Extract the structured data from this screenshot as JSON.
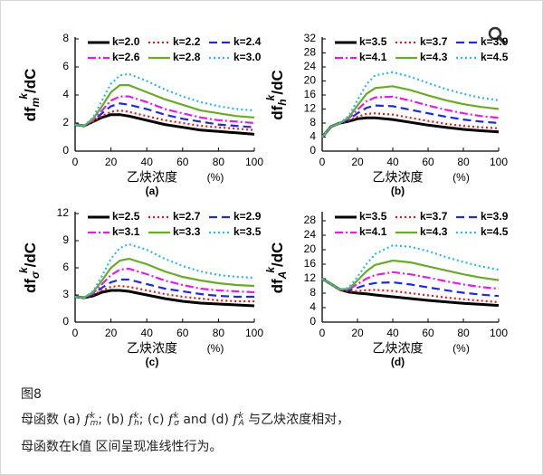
{
  "chart_data": [
    {
      "type": "line",
      "panel": "(a)",
      "xlabel": "乙炔浓度",
      "xunit": "(%)",
      "ylabel": {
        "base": "df",
        "sub": "m",
        "sup": "k",
        "rest": "/dC"
      },
      "x": [
        0,
        5,
        10,
        15,
        20,
        25,
        30,
        40,
        50,
        60,
        70,
        80,
        90,
        100
      ],
      "xlim": [
        0,
        100
      ],
      "xticks": [
        0,
        20,
        40,
        60,
        80,
        100
      ],
      "ylim": [
        0,
        8
      ],
      "yticks": [
        0,
        2,
        4,
        6,
        8
      ],
      "series": [
        {
          "name": "k=2.0",
          "color": "#000000",
          "style": "solid",
          "values": [
            1.9,
            1.8,
            2.1,
            2.4,
            2.6,
            2.6,
            2.5,
            2.2,
            1.9,
            1.7,
            1.5,
            1.4,
            1.3,
            1.2
          ]
        },
        {
          "name": "k=2.2",
          "color": "#e31a1c",
          "style": "dotted",
          "values": [
            1.9,
            1.8,
            2.1,
            2.5,
            2.8,
            2.9,
            2.8,
            2.5,
            2.2,
            2.0,
            1.8,
            1.7,
            1.6,
            1.5
          ]
        },
        {
          "name": "k=2.4",
          "color": "#1f2bd6",
          "style": "dashed",
          "values": [
            1.9,
            1.8,
            2.2,
            2.7,
            3.2,
            3.4,
            3.3,
            3.0,
            2.6,
            2.3,
            2.1,
            1.9,
            1.8,
            1.7
          ]
        },
        {
          "name": "k=2.6",
          "color": "#e020e0",
          "style": "dashdot",
          "values": [
            1.9,
            1.8,
            2.2,
            2.9,
            3.6,
            3.9,
            3.9,
            3.5,
            3.0,
            2.7,
            2.4,
            2.2,
            2.1,
            2.0
          ]
        },
        {
          "name": "k=2.8",
          "color": "#6aaa2a",
          "style": "solid",
          "values": [
            1.9,
            1.8,
            2.3,
            3.2,
            4.2,
            4.7,
            4.7,
            4.2,
            3.7,
            3.3,
            2.9,
            2.7,
            2.5,
            2.4
          ]
        },
        {
          "name": "k=3.0",
          "color": "#33b5e5",
          "style": "dotted",
          "values": [
            1.9,
            1.8,
            2.4,
            3.6,
            4.8,
            5.4,
            5.5,
            5.0,
            4.4,
            3.9,
            3.5,
            3.2,
            3.0,
            2.9
          ]
        }
      ]
    },
    {
      "type": "line",
      "panel": "(b)",
      "xlabel": "乙炔浓度",
      "xunit": "(%)",
      "ylabel": {
        "base": "df",
        "sub": "h",
        "sup": "k",
        "rest": "/dC"
      },
      "x": [
        0,
        5,
        10,
        15,
        20,
        25,
        30,
        40,
        50,
        60,
        70,
        80,
        90,
        100
      ],
      "xlim": [
        0,
        100
      ],
      "xticks": [
        0,
        20,
        40,
        60,
        80,
        100
      ],
      "ylim": [
        0,
        32
      ],
      "yticks": [
        0,
        4,
        8,
        12,
        16,
        20,
        24,
        28,
        32
      ],
      "series": [
        {
          "name": "k=3.5",
          "color": "#000000",
          "style": "solid",
          "values": [
            4,
            7,
            8,
            8.5,
            9.2,
            9.5,
            9.5,
            9.0,
            8.2,
            7.4,
            6.8,
            6.2,
            5.8,
            5.5
          ]
        },
        {
          "name": "k=3.7",
          "color": "#e31a1c",
          "style": "dotted",
          "values": [
            4,
            7,
            8,
            8.7,
            9.8,
            10.6,
            10.8,
            10.4,
            9.5,
            8.6,
            7.8,
            7.2,
            6.8,
            6.5
          ]
        },
        {
          "name": "k=3.9",
          "color": "#1f2bd6",
          "style": "dashed",
          "values": [
            4,
            7,
            8,
            9.0,
            10.8,
            12.3,
            13.0,
            12.8,
            11.8,
            10.8,
            9.8,
            9.0,
            8.4,
            8.0
          ]
        },
        {
          "name": "k=4.1",
          "color": "#e020e0",
          "style": "dashdot",
          "values": [
            4,
            7,
            8,
            9.3,
            11.8,
            14.2,
            15.3,
            15.5,
            14.4,
            13.0,
            11.8,
            10.8,
            10.0,
            9.5
          ]
        },
        {
          "name": "k=4.3",
          "color": "#6aaa2a",
          "style": "solid",
          "values": [
            4,
            7,
            8,
            9.6,
            13.0,
            16.3,
            18.0,
            18.5,
            17.4,
            15.9,
            14.5,
            13.4,
            12.6,
            12.0
          ]
        },
        {
          "name": "k=4.5",
          "color": "#33b5e5",
          "style": "dotted",
          "values": [
            4,
            7,
            8,
            10,
            14.5,
            19.0,
            21.6,
            22.5,
            21.2,
            19.4,
            17.7,
            16.3,
            15.2,
            14.5
          ]
        }
      ]
    },
    {
      "type": "line",
      "panel": "(c)",
      "xlabel": "乙炔浓度",
      "xunit": "(%)",
      "ylabel": {
        "base": "df",
        "sub": "σ",
        "sup": "k",
        "rest": "/dC"
      },
      "x": [
        0,
        5,
        10,
        15,
        20,
        25,
        30,
        40,
        50,
        60,
        70,
        80,
        90,
        100
      ],
      "xlim": [
        0,
        100
      ],
      "xticks": [
        0,
        20,
        40,
        60,
        80,
        100
      ],
      "ylim": [
        0,
        12
      ],
      "yticks": [
        0,
        3,
        6,
        9,
        12
      ],
      "series": [
        {
          "name": "k=2.5",
          "color": "#000000",
          "style": "solid",
          "values": [
            2.8,
            2.7,
            2.9,
            3.3,
            3.5,
            3.5,
            3.4,
            3.0,
            2.6,
            2.3,
            2.1,
            2.0,
            1.9,
            1.8
          ]
        },
        {
          "name": "k=2.7",
          "color": "#e31a1c",
          "style": "dotted",
          "values": [
            2.8,
            2.7,
            3.0,
            3.5,
            3.9,
            4.0,
            3.9,
            3.5,
            3.1,
            2.8,
            2.6,
            2.4,
            2.3,
            2.3
          ]
        },
        {
          "name": "k=2.9",
          "color": "#1f2bd6",
          "style": "dashed",
          "values": [
            2.8,
            2.7,
            3.1,
            3.8,
            4.4,
            4.7,
            4.7,
            4.2,
            3.7,
            3.4,
            3.1,
            2.9,
            2.8,
            2.8
          ]
        },
        {
          "name": "k=3.1",
          "color": "#e020e0",
          "style": "dashdot",
          "values": [
            2.8,
            2.7,
            3.2,
            4.2,
            5.2,
            5.8,
            5.9,
            5.3,
            4.6,
            4.1,
            3.7,
            3.5,
            3.4,
            3.3
          ]
        },
        {
          "name": "k=3.3",
          "color": "#6aaa2a",
          "style": "solid",
          "values": [
            2.8,
            2.7,
            3.3,
            4.6,
            6.0,
            6.8,
            7.0,
            6.4,
            5.6,
            5.0,
            4.6,
            4.3,
            4.1,
            4.0
          ]
        },
        {
          "name": "k=3.5",
          "color": "#33b5e5",
          "style": "dotted",
          "values": [
            2.8,
            2.7,
            3.4,
            5.1,
            7.0,
            8.2,
            8.6,
            8.0,
            7.0,
            6.2,
            5.6,
            5.2,
            5.0,
            4.9
          ]
        }
      ]
    },
    {
      "type": "line",
      "panel": "(d)",
      "xlabel": "乙炔浓度",
      "xunit": "(%)",
      "ylabel": {
        "base": "df",
        "sub": "A",
        "sup": "k",
        "rest": "/dC"
      },
      "x": [
        0,
        5,
        10,
        15,
        20,
        25,
        30,
        40,
        50,
        60,
        70,
        80,
        90,
        100
      ],
      "xlim": [
        0,
        100
      ],
      "xticks": [
        0,
        20,
        40,
        60,
        80,
        100
      ],
      "ylim": [
        0,
        30
      ],
      "yticks": [
        0,
        4,
        8,
        12,
        16,
        20,
        24,
        28
      ],
      "series": [
        {
          "name": "k=3.5",
          "color": "#000000",
          "style": "solid",
          "values": [
            12,
            10.5,
            9.0,
            8.3,
            8.0,
            7.8,
            7.5,
            7.0,
            6.5,
            6.0,
            5.6,
            5.2,
            4.9,
            4.6
          ]
        },
        {
          "name": "k=3.7",
          "color": "#e31a1c",
          "style": "dotted",
          "values": [
            12,
            10.5,
            9.0,
            8.5,
            8.6,
            8.8,
            8.9,
            8.6,
            8.0,
            7.4,
            6.8,
            6.3,
            5.9,
            5.5
          ]
        },
        {
          "name": "k=3.9",
          "color": "#1f2bd6",
          "style": "dashed",
          "values": [
            12,
            10.5,
            9.0,
            8.8,
            9.5,
            10.3,
            10.8,
            11.0,
            10.4,
            9.6,
            8.8,
            8.1,
            7.6,
            7.2
          ]
        },
        {
          "name": "k=4.1",
          "color": "#e020e0",
          "style": "dashdot",
          "values": [
            12,
            10.5,
            9.0,
            9.0,
            10.5,
            12.0,
            13.0,
            13.8,
            13.2,
            12.3,
            11.3,
            10.4,
            9.7,
            9.2
          ]
        },
        {
          "name": "k=4.3",
          "color": "#6aaa2a",
          "style": "solid",
          "values": [
            12,
            10.5,
            9.0,
            9.2,
            11.5,
            14.0,
            15.8,
            17.0,
            16.5,
            15.4,
            14.3,
            13.2,
            12.3,
            11.6
          ]
        },
        {
          "name": "k=4.5",
          "color": "#33b5e5",
          "style": "dotted",
          "values": [
            12,
            10.5,
            9.0,
            9.5,
            12.5,
            16.0,
            18.8,
            21.2,
            20.8,
            19.6,
            18.0,
            16.6,
            15.4,
            14.5
          ]
        }
      ]
    }
  ],
  "caption": {
    "label": "图8",
    "line1": [
      {
        "text": "母函数 (a) "
      },
      {
        "f": "f",
        "sup": "k",
        "sub": "m"
      },
      {
        "text": "; (b) "
      },
      {
        "f": "f",
        "sup": "k",
        "sub": "h"
      },
      {
        "text": "; (c) "
      },
      {
        "f": "f",
        "sup": "k",
        "sub": "σ"
      },
      {
        "text": " and (d) "
      },
      {
        "f": "f",
        "sup": "k",
        "sub": "A"
      },
      {
        "text": " 与乙炔浓度相对，"
      }
    ],
    "line2": "母函数在k值 区间呈现准线性行为。"
  }
}
